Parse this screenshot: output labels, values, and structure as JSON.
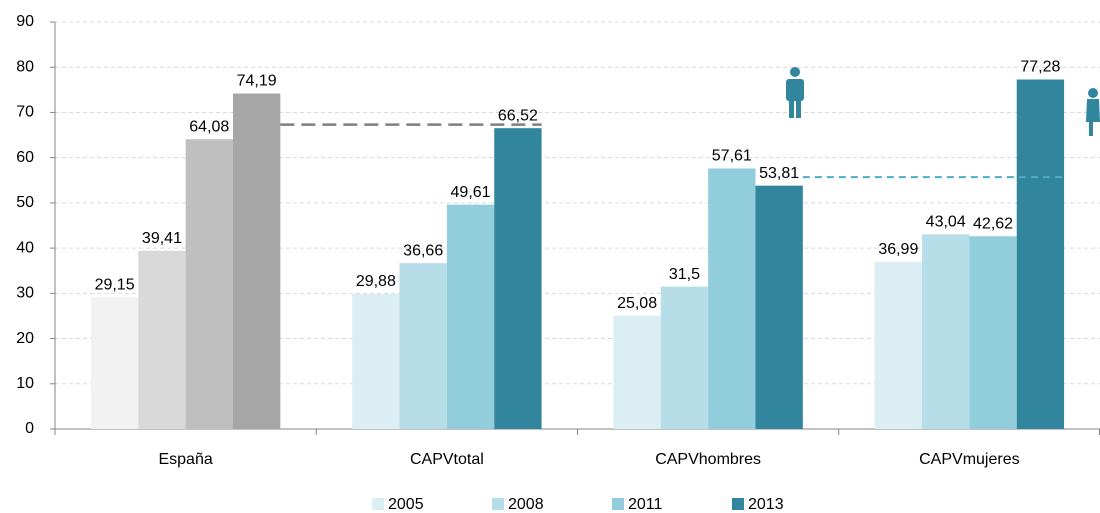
{
  "chart_data": {
    "type": "bar",
    "categories": [
      "España",
      "CAPVtotal",
      "CAPVhombres",
      "CAPVmujeres"
    ],
    "series": [
      {
        "name": "2005",
        "color": "#dbeef3",
        "colors": [
          "#f2f2f2",
          "#dbeef3",
          "#dbeef3",
          "#dbeef3"
        ],
        "values": [
          29.15,
          29.88,
          25.08,
          36.99
        ],
        "value_labels": [
          "29,15",
          "29,88",
          "25,08",
          "36,99"
        ]
      },
      {
        "name": "2008",
        "color": "#b7dde8",
        "colors": [
          "#d9d9d9",
          "#b7dde8",
          "#b7dde8",
          "#b7dde8"
        ],
        "values": [
          39.41,
          36.66,
          31.5,
          43.04
        ],
        "value_labels": [
          "39,41",
          "36,66",
          "31,5",
          "43,04"
        ]
      },
      {
        "name": "2011",
        "color": "#92cddc",
        "colors": [
          "#bfbfbf",
          "#92cddc",
          "#92cddc",
          "#92cddc"
        ],
        "values": [
          64.08,
          49.61,
          57.61,
          42.62
        ],
        "value_labels": [
          "64,08",
          "49,61",
          "57,61",
          "42,62"
        ]
      },
      {
        "name": "2013",
        "color": "#31859c",
        "colors": [
          "#a6a6a6",
          "#31859c",
          "#31859c",
          "#31859c"
        ],
        "values": [
          74.19,
          66.52,
          53.81,
          77.28
        ],
        "value_labels": [
          "74,19",
          "66,52",
          "53,81",
          "77,28"
        ]
      }
    ],
    "reference_lines": [
      {
        "value": 67.3,
        "color": "#7f7f7f"
      },
      {
        "value": 55.7,
        "color": "#4bacc6"
      }
    ],
    "ylim": [
      0,
      90
    ],
    "yticks": [
      0,
      10,
      20,
      30,
      40,
      50,
      60,
      70,
      80,
      90
    ],
    "grid": true,
    "legend": "bottom"
  }
}
